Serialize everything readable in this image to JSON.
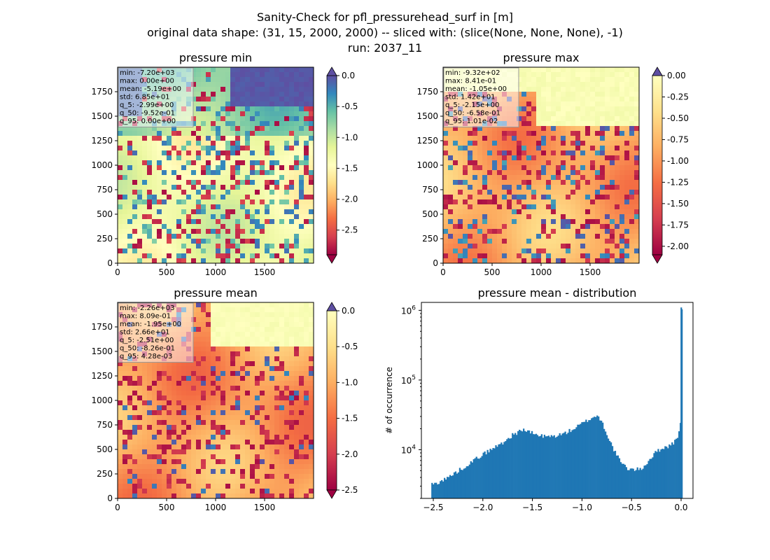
{
  "suptitle": {
    "line1": "Sanity-Check for pfl_pressurehead_surf in [m]",
    "line2": "original data shape: (31, 15, 2000, 2000) -- sliced with: (slice(None, None, None), -1)",
    "line3": "run: 2037_11"
  },
  "chart_data": [
    {
      "type": "heatmap",
      "title": "pressure min",
      "colormap": "Spectral",
      "xlim": [
        0,
        2000
      ],
      "ylim": [
        0,
        2000
      ],
      "x_ticks": [
        "0",
        "500",
        "1000",
        "1500"
      ],
      "y_ticks": [
        "0",
        "250",
        "500",
        "750",
        "1000",
        "1250",
        "1500",
        "1750"
      ],
      "colorbar": {
        "range": [
          -2.9,
          0.0
        ],
        "ticks": [
          "0.0",
          "-0.5",
          "-1.0",
          "-1.5",
          "-2.0",
          "-2.5"
        ],
        "extend": "both"
      },
      "stats": [
        "min: -7.20e+03",
        "max: 0.00e+00",
        "mean: -5.19e+00",
        "std: 6.85e+01",
        "q_5: -2.99e+00",
        "q_50: -9.52e-01",
        "q_95: 0.00e+00"
      ]
    },
    {
      "type": "heatmap",
      "title": "pressure max",
      "colormap": "Spectral",
      "xlim": [
        0,
        2000
      ],
      "ylim": [
        0,
        2000
      ],
      "x_ticks": [
        "0",
        "500",
        "1000",
        "1500"
      ],
      "y_ticks": [
        "0",
        "250",
        "500",
        "750",
        "1000",
        "1250",
        "1500",
        "1750"
      ],
      "colorbar": {
        "range": [
          -2.1,
          0.0
        ],
        "ticks": [
          "0.00",
          "-0.25",
          "-0.50",
          "-0.75",
          "-1.00",
          "-1.25",
          "-1.50",
          "-1.75",
          "-2.00"
        ],
        "extend": "both"
      },
      "stats": [
        "min: -9.32e+02",
        "max: 8.41e-01",
        "mean: -1.05e+00",
        "std: 1.42e+01",
        "q_5: -2.15e+00",
        "q_50: -6.58e-01",
        "q_95: 1.01e-02"
      ]
    },
    {
      "type": "heatmap",
      "title": "pressure mean",
      "colormap": "Spectral",
      "xlim": [
        0,
        2000
      ],
      "ylim": [
        0,
        2000
      ],
      "x_ticks": [
        "0",
        "500",
        "1000",
        "1500"
      ],
      "y_ticks": [
        "0",
        "250",
        "500",
        "750",
        "1000",
        "1250",
        "1500",
        "1750"
      ],
      "colorbar": {
        "range": [
          -2.5,
          0.0
        ],
        "ticks": [
          "0.0",
          "-0.5",
          "-1.0",
          "-1.5",
          "-2.0",
          "-2.5"
        ],
        "extend": "both"
      },
      "stats": [
        "min: -2.26e+03",
        "max: 8.09e-01",
        "mean: -1.95e+00",
        "std: 2.66e+01",
        "q_5: -2.51e+00",
        "q_50: -8.26e-01",
        "q_95: 4.28e-03"
      ]
    },
    {
      "type": "bar",
      "title": "pressure mean - distribution",
      "ylabel": "# of occurrence",
      "yscale": "log",
      "xlim": [
        -2.62,
        0.12
      ],
      "ylim": [
        2000,
        1300000
      ],
      "x_ticks": [
        "−2.5",
        "−2.0",
        "−1.5",
        "−1.0",
        "−0.5",
        "0.0"
      ],
      "y_ticks": [
        "10^4",
        "10^5",
        "10^6"
      ],
      "color": "#1f77b4",
      "bins": {
        "x": [
          -2.5,
          -2.4,
          -2.3,
          -2.2,
          -2.1,
          -2.0,
          -1.9,
          -1.8,
          -1.7,
          -1.6,
          -1.5,
          -1.4,
          -1.3,
          -1.2,
          -1.1,
          -1.0,
          -0.9,
          -0.85,
          -0.8,
          -0.75,
          -0.7,
          -0.65,
          -0.6,
          -0.55,
          -0.5,
          -0.45,
          -0.4,
          -0.35,
          -0.3,
          -0.25,
          -0.2,
          -0.15,
          -0.1,
          -0.05,
          -0.02,
          -0.01,
          0.0
        ],
        "y": [
          3200,
          3700,
          4500,
          5600,
          7000,
          8700,
          10500,
          12800,
          16500,
          19500,
          17000,
          15500,
          15500,
          16800,
          19500,
          24000,
          29000,
          31000,
          24000,
          16000,
          11000,
          8000,
          6200,
          5400,
          5200,
          5200,
          5400,
          6500,
          8000,
          9500,
          10500,
          11000,
          12000,
          14000,
          20000,
          26000,
          1100000
        ]
      }
    }
  ]
}
